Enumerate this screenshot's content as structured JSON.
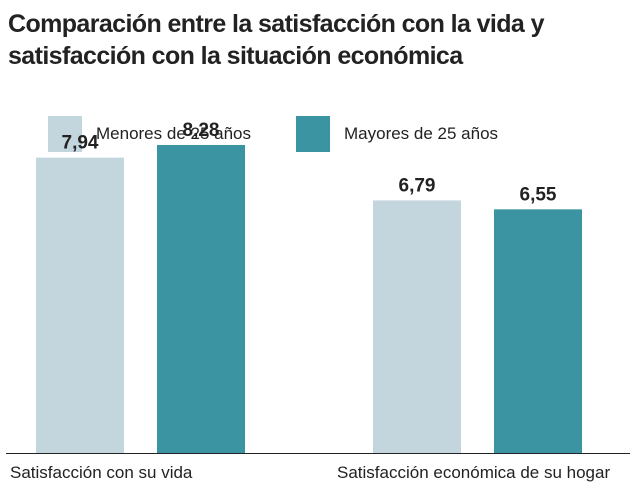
{
  "title": "Comparación entre la satisfacción con la vida y satisfacción con la situación económica",
  "colors": {
    "series_1": "#c3d5dd",
    "series_2": "#3a94a2",
    "baseline": "#222222"
  },
  "chart_data": {
    "type": "bar",
    "title": "Comparación entre la satisfacción con la vida y satisfacción con la situación económica",
    "categories": [
      "Satisfacción con su vida",
      "Satisfacción económica de su hogar"
    ],
    "series": [
      {
        "name": "Menores de 25 años",
        "values": [
          7.94,
          6.79
        ],
        "labels": [
          "7,94",
          "6,79"
        ]
      },
      {
        "name": "Mayores de 25 años",
        "values": [
          8.28,
          6.55
        ],
        "labels": [
          "8,28",
          "6,55"
        ]
      }
    ],
    "ylim": [
      0,
      10
    ],
    "legend": "top",
    "grid": false
  }
}
